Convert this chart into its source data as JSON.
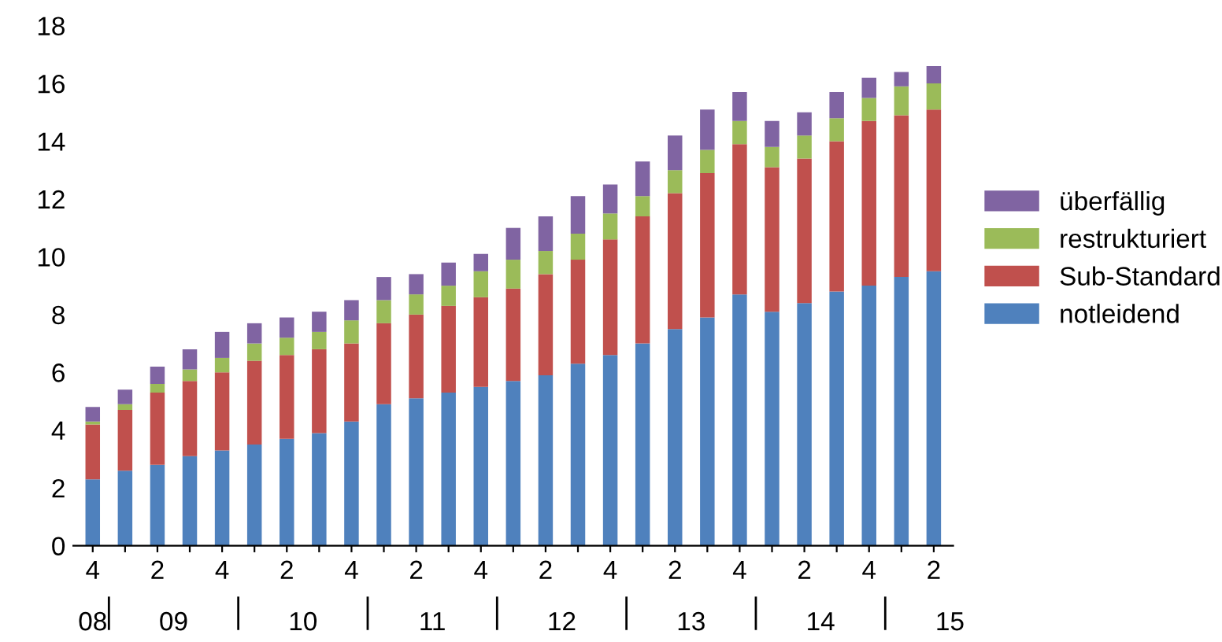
{
  "chart_data": {
    "type": "bar",
    "stacked": true,
    "categories": [
      "4",
      null,
      "2",
      null,
      "4",
      null,
      "2",
      null,
      "4",
      null,
      "2",
      null,
      "4",
      null,
      "2",
      null,
      "4",
      null,
      "2",
      null,
      "4",
      null,
      "2",
      null,
      "4",
      null,
      "2"
    ],
    "series": [
      {
        "name": "notleidend",
        "color": "#4f81bd",
        "values": [
          2.3,
          2.6,
          2.8,
          3.1,
          3.3,
          3.5,
          3.7,
          3.9,
          4.3,
          4.9,
          5.1,
          5.3,
          5.5,
          5.7,
          5.9,
          6.3,
          6.6,
          7.0,
          7.5,
          7.9,
          8.7,
          8.1,
          8.4,
          8.8,
          9.0,
          9.3,
          9.5
        ]
      },
      {
        "name": "Sub-Standard",
        "color": "#c0504d",
        "values": [
          1.9,
          2.1,
          2.5,
          2.6,
          2.7,
          2.9,
          2.9,
          2.9,
          2.7,
          2.8,
          2.9,
          3.0,
          3.1,
          3.2,
          3.5,
          3.6,
          4.0,
          4.4,
          4.7,
          5.0,
          5.2,
          5.0,
          5.0,
          5.2,
          5.7,
          5.6,
          5.6
        ]
      },
      {
        "name": "restrukturiert",
        "color": "#9bbb59",
        "values": [
          0.1,
          0.2,
          0.3,
          0.4,
          0.5,
          0.6,
          0.6,
          0.6,
          0.8,
          0.8,
          0.7,
          0.7,
          0.9,
          1.0,
          0.8,
          0.9,
          0.9,
          0.7,
          0.8,
          0.8,
          0.8,
          0.7,
          0.8,
          0.8,
          0.8,
          1.0,
          0.9
        ]
      },
      {
        "name": "überfällig",
        "color": "#8064a2",
        "values": [
          0.5,
          0.5,
          0.6,
          0.7,
          0.9,
          0.7,
          0.7,
          0.7,
          0.7,
          0.8,
          0.7,
          0.8,
          0.6,
          1.1,
          1.2,
          1.3,
          1.0,
          1.2,
          1.2,
          1.4,
          1.0,
          0.9,
          0.8,
          0.9,
          0.7,
          0.5,
          0.6
        ]
      }
    ],
    "ylim": [
      0,
      18
    ],
    "yticks": [
      0,
      2,
      4,
      6,
      8,
      10,
      12,
      14,
      16,
      18
    ],
    "grid": false,
    "legend": "right",
    "annotations": [
      "08",
      "09",
      "10",
      "11",
      "12",
      "13",
      "14",
      "15"
    ]
  }
}
